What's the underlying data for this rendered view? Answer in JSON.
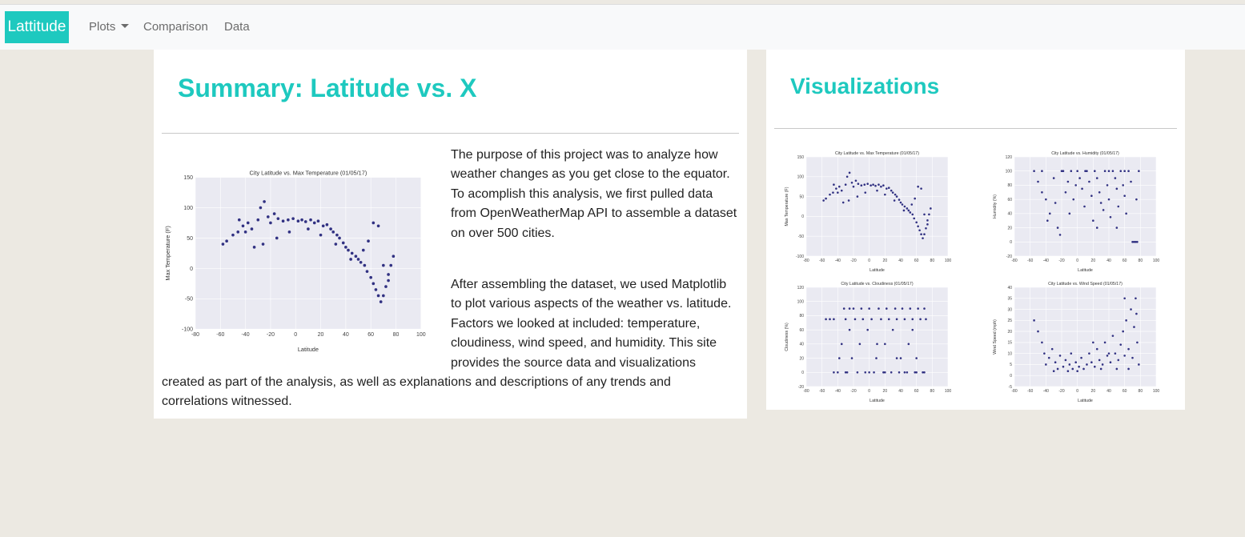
{
  "navbar": {
    "brand": "Lattitude",
    "items": [
      {
        "label": "Plots",
        "dropdown": true
      },
      {
        "label": "Comparison",
        "dropdown": false
      },
      {
        "label": "Data",
        "dropdown": false
      }
    ]
  },
  "colors": {
    "accent": "#1ec9bf",
    "background": "#ece9e2",
    "points": "#10106e",
    "plot_bg": "#eaeaf2"
  },
  "summary": {
    "title": "Summary: Latitude vs. X",
    "paragraph1": "The purpose of this project was to analyze how weather changes as you get close to the equator. To acomplish this analysis, we first pulled data from OpenWeatherMap API to assemble a dataset on over 500 cities.",
    "paragraph2": "After assembling the dataset, we used Matplotlib to plot various aspects of the weather vs. latitude. Factors we looked at included: temperature, cloudiness, wind speed, and humidity. This site provides the source data and visualizations created as part of the analysis, as well as explanations and descriptions of any trends and correlations witnessed."
  },
  "visualizations": {
    "title": "Visualizations"
  },
  "chart_data": [
    {
      "id": "temp",
      "type": "scatter",
      "title": "City Latitude vs. Max Temperature (01/05/17)",
      "xlabel": "Latitude",
      "ylabel": "Max Temperature (F)",
      "xlim": [
        -80,
        100
      ],
      "ylim": [
        -100,
        150
      ],
      "xticks": [
        -80,
        -60,
        -40,
        -20,
        0,
        20,
        40,
        60,
        80,
        100
      ],
      "yticks": [
        -100,
        -50,
        0,
        50,
        100,
        150
      ],
      "grid": true,
      "points": [
        [
          -58,
          40
        ],
        [
          -55,
          45
        ],
        [
          -50,
          55
        ],
        [
          -46,
          60
        ],
        [
          -42,
          70
        ],
        [
          -38,
          75
        ],
        [
          -35,
          65
        ],
        [
          -30,
          80
        ],
        [
          -28,
          100
        ],
        [
          -25,
          110
        ],
        [
          -22,
          85
        ],
        [
          -20,
          75
        ],
        [
          -17,
          90
        ],
        [
          -14,
          82
        ],
        [
          -10,
          78
        ],
        [
          -6,
          80
        ],
        [
          -2,
          82
        ],
        [
          2,
          78
        ],
        [
          5,
          80
        ],
        [
          8,
          77
        ],
        [
          12,
          80
        ],
        [
          15,
          75
        ],
        [
          18,
          78
        ],
        [
          22,
          70
        ],
        [
          25,
          72
        ],
        [
          28,
          65
        ],
        [
          30,
          60
        ],
        [
          33,
          55
        ],
        [
          35,
          50
        ],
        [
          38,
          42
        ],
        [
          40,
          35
        ],
        [
          42,
          30
        ],
        [
          45,
          25
        ],
        [
          48,
          20
        ],
        [
          50,
          15
        ],
        [
          52,
          10
        ],
        [
          55,
          5
        ],
        [
          57,
          -5
        ],
        [
          60,
          -15
        ],
        [
          62,
          -25
        ],
        [
          64,
          -35
        ],
        [
          66,
          -45
        ],
        [
          68,
          -55
        ],
        [
          70,
          -45
        ],
        [
          72,
          -30
        ],
        [
          74,
          -10
        ],
        [
          76,
          5
        ],
        [
          78,
          20
        ],
        [
          -45,
          80
        ],
        [
          -40,
          60
        ],
        [
          -33,
          35
        ],
        [
          -26,
          40
        ],
        [
          -15,
          50
        ],
        [
          -5,
          60
        ],
        [
          10,
          65
        ],
        [
          20,
          55
        ],
        [
          32,
          40
        ],
        [
          44,
          15
        ],
        [
          54,
          30
        ],
        [
          58,
          45
        ],
        [
          62,
          75
        ],
        [
          66,
          70
        ],
        [
          70,
          5
        ],
        [
          74,
          -20
        ]
      ]
    },
    {
      "id": "humidity",
      "type": "scatter",
      "title": "City Latitude vs. Humidity (01/05/17)",
      "xlabel": "Latitude",
      "ylabel": "Humidity (%)",
      "xlim": [
        -80,
        100
      ],
      "ylim": [
        -20,
        120
      ],
      "xticks": [
        -80,
        -60,
        -40,
        -20,
        0,
        20,
        40,
        60,
        80,
        100
      ],
      "yticks": [
        -20,
        0,
        20,
        40,
        60,
        80,
        100,
        120
      ],
      "grid": true,
      "points": [
        [
          -55,
          100
        ],
        [
          -50,
          85
        ],
        [
          -45,
          70
        ],
        [
          -40,
          60
        ],
        [
          -38,
          30
        ],
        [
          -35,
          40
        ],
        [
          -30,
          90
        ],
        [
          -28,
          55
        ],
        [
          -25,
          20
        ],
        [
          -22,
          10
        ],
        [
          -18,
          100
        ],
        [
          -15,
          70
        ],
        [
          -12,
          85
        ],
        [
          -10,
          40
        ],
        [
          -8,
          100
        ],
        [
          -5,
          60
        ],
        [
          -2,
          80
        ],
        [
          0,
          100
        ],
        [
          3,
          90
        ],
        [
          6,
          75
        ],
        [
          9,
          50
        ],
        [
          12,
          100
        ],
        [
          15,
          85
        ],
        [
          18,
          65
        ],
        [
          20,
          30
        ],
        [
          22,
          100
        ],
        [
          25,
          90
        ],
        [
          28,
          70
        ],
        [
          30,
          55
        ],
        [
          33,
          45
        ],
        [
          35,
          100
        ],
        [
          38,
          80
        ],
        [
          40,
          60
        ],
        [
          42,
          35
        ],
        [
          45,
          100
        ],
        [
          48,
          90
        ],
        [
          50,
          75
        ],
        [
          52,
          50
        ],
        [
          55,
          100
        ],
        [
          58,
          80
        ],
        [
          60,
          65
        ],
        [
          62,
          40
        ],
        [
          65,
          100
        ],
        [
          68,
          85
        ],
        [
          70,
          0
        ],
        [
          72,
          0
        ],
        [
          74,
          0
        ],
        [
          76,
          0
        ],
        [
          78,
          100
        ],
        [
          -20,
          100
        ],
        [
          10,
          100
        ],
        [
          40,
          100
        ],
        [
          60,
          100
        ],
        [
          -45,
          100
        ],
        [
          25,
          20
        ],
        [
          50,
          20
        ],
        [
          75,
          60
        ]
      ]
    },
    {
      "id": "cloud",
      "type": "scatter",
      "title": "City Latitude vs. Cloudiness (01/05/17)",
      "xlabel": "Latitude",
      "ylabel": "Cloudiness (%)",
      "xlim": [
        -80,
        100
      ],
      "ylim": [
        -20,
        120
      ],
      "xticks": [
        -80,
        -60,
        -40,
        -20,
        0,
        20,
        40,
        60,
        80,
        100
      ],
      "yticks": [
        -20,
        0,
        20,
        40,
        60,
        80,
        100,
        120
      ],
      "grid": true,
      "points": [
        [
          -55,
          75
        ],
        [
          -50,
          75
        ],
        [
          -45,
          75
        ],
        [
          -40,
          0
        ],
        [
          -38,
          20
        ],
        [
          -35,
          40
        ],
        [
          -32,
          90
        ],
        [
          -30,
          75
        ],
        [
          -28,
          0
        ],
        [
          -25,
          60
        ],
        [
          -22,
          20
        ],
        [
          -20,
          90
        ],
        [
          -18,
          75
        ],
        [
          -15,
          0
        ],
        [
          -12,
          40
        ],
        [
          -10,
          90
        ],
        [
          -8,
          75
        ],
        [
          -5,
          0
        ],
        [
          -2,
          60
        ],
        [
          0,
          90
        ],
        [
          3,
          75
        ],
        [
          6,
          0
        ],
        [
          9,
          20
        ],
        [
          12,
          90
        ],
        [
          15,
          75
        ],
        [
          18,
          0
        ],
        [
          20,
          40
        ],
        [
          22,
          90
        ],
        [
          25,
          75
        ],
        [
          28,
          0
        ],
        [
          30,
          60
        ],
        [
          33,
          90
        ],
        [
          35,
          75
        ],
        [
          38,
          0
        ],
        [
          40,
          20
        ],
        [
          42,
          90
        ],
        [
          45,
          75
        ],
        [
          48,
          0
        ],
        [
          50,
          40
        ],
        [
          52,
          90
        ],
        [
          55,
          75
        ],
        [
          58,
          0
        ],
        [
          60,
          20
        ],
        [
          62,
          90
        ],
        [
          65,
          75
        ],
        [
          68,
          0
        ],
        [
          70,
          90
        ],
        [
          72,
          75
        ],
        [
          -45,
          0
        ],
        [
          -30,
          0
        ],
        [
          0,
          0
        ],
        [
          20,
          0
        ],
        [
          45,
          0
        ],
        [
          60,
          0
        ],
        [
          -25,
          90
        ],
        [
          10,
          40
        ],
        [
          35,
          20
        ],
        [
          55,
          60
        ],
        [
          70,
          0
        ]
      ]
    },
    {
      "id": "wind",
      "type": "scatter",
      "title": "City Latitude vs. Wind Speed (01/05/17)",
      "xlabel": "Latitude",
      "ylabel": "Wind Speed (mph)",
      "xlim": [
        -80,
        100
      ],
      "ylim": [
        -5,
        40
      ],
      "xticks": [
        -80,
        -60,
        -40,
        -20,
        0,
        20,
        40,
        60,
        80,
        100
      ],
      "yticks": [
        -5,
        0,
        5,
        10,
        15,
        20,
        25,
        30,
        35,
        40
      ],
      "grid": true,
      "points": [
        [
          -55,
          25
        ],
        [
          -50,
          20
        ],
        [
          -45,
          15
        ],
        [
          -42,
          10
        ],
        [
          -40,
          5
        ],
        [
          -36,
          8
        ],
        [
          -32,
          12
        ],
        [
          -28,
          6
        ],
        [
          -25,
          3
        ],
        [
          -22,
          9
        ],
        [
          -18,
          4
        ],
        [
          -15,
          7
        ],
        [
          -12,
          2
        ],
        [
          -10,
          5
        ],
        [
          -6,
          3
        ],
        [
          -2,
          6
        ],
        [
          2,
          4
        ],
        [
          5,
          8
        ],
        [
          8,
          3
        ],
        [
          12,
          5
        ],
        [
          15,
          10
        ],
        [
          18,
          6
        ],
        [
          22,
          4
        ],
        [
          25,
          12
        ],
        [
          28,
          7
        ],
        [
          32,
          5
        ],
        [
          35,
          15
        ],
        [
          38,
          9
        ],
        [
          42,
          6
        ],
        [
          45,
          18
        ],
        [
          48,
          10
        ],
        [
          52,
          7
        ],
        [
          55,
          14
        ],
        [
          58,
          20
        ],
        [
          60,
          9
        ],
        [
          62,
          25
        ],
        [
          65,
          12
        ],
        [
          68,
          30
        ],
        [
          70,
          8
        ],
        [
          72,
          22
        ],
        [
          74,
          35
        ],
        [
          76,
          15
        ],
        [
          78,
          5
        ],
        [
          -30,
          2
        ],
        [
          0,
          2
        ],
        [
          30,
          3
        ],
        [
          50,
          3
        ],
        [
          65,
          3
        ],
        [
          75,
          28
        ],
        [
          20,
          15
        ],
        [
          40,
          10
        ],
        [
          60,
          35
        ],
        [
          -8,
          10
        ]
      ]
    }
  ]
}
